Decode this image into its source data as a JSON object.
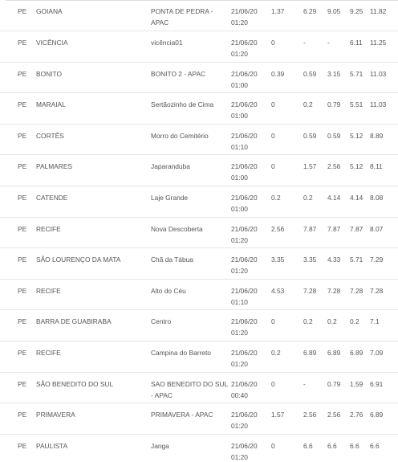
{
  "rows": [
    {
      "uf": "PE",
      "municipio": "GOIANA",
      "estacao": "PONTA DE PEDRA - APAC",
      "data": "21/06/20",
      "hora": "01:20",
      "v1": "1.37",
      "v2": "6.29",
      "v3": "9.05",
      "v4": "9.25",
      "v5": "11.82"
    },
    {
      "uf": "PE",
      "municipio": "VICÊNCIA",
      "estacao": "vicência01",
      "data": "21/06/20",
      "hora": "01:20",
      "v1": "0",
      "v2": "-",
      "v3": "-",
      "v4": "6.11",
      "v5": "11.25"
    },
    {
      "uf": "PE",
      "municipio": "BONITO",
      "estacao": "BONITO 2 - APAC",
      "data": "21/06/20",
      "hora": "01:00",
      "v1": "0.39",
      "v2": "0.59",
      "v3": "3.15",
      "v4": "5.71",
      "v5": "11.03"
    },
    {
      "uf": "PE",
      "municipio": "MARAIAL",
      "estacao": "Sertãozinho de Cima",
      "data": "21/06/20",
      "hora": "01:00",
      "v1": "0",
      "v2": "0.2",
      "v3": "0.79",
      "v4": "5.51",
      "v5": "11.03"
    },
    {
      "uf": "PE",
      "municipio": "CORTÊS",
      "estacao": "Morro do Cemitério",
      "data": "21/06/20",
      "hora": "01:10",
      "v1": "0",
      "v2": "0.59",
      "v3": "0.59",
      "v4": "5.12",
      "v5": "8.89"
    },
    {
      "uf": "PE",
      "municipio": "PALMARES",
      "estacao": "Japaranduba",
      "data": "21/06/20",
      "hora": "01:00",
      "v1": "0",
      "v2": "1.57",
      "v3": "2.56",
      "v4": "5.12",
      "v5": "8.11"
    },
    {
      "uf": "PE",
      "municipio": "CATENDE",
      "estacao": "Laje Grande",
      "data": "21/06/20",
      "hora": "01:00",
      "v1": "0.2",
      "v2": "0.2",
      "v3": "4.14",
      "v4": "4.14",
      "v5": "8.08"
    },
    {
      "uf": "PE",
      "municipio": "RECIFE",
      "estacao": "Nova Descoberta",
      "data": "21/06/20",
      "hora": "01:20",
      "v1": "2.56",
      "v2": "7.87",
      "v3": "7.87",
      "v4": "7.87",
      "v5": "8.07"
    },
    {
      "uf": "PE",
      "municipio": "SÃO LOURENÇO DA MATA",
      "estacao": "Chã da Tábua",
      "data": "21/06/20",
      "hora": "01:20",
      "v1": "3.35",
      "v2": "3.35",
      "v3": "4.33",
      "v4": "5.71",
      "v5": "7.29"
    },
    {
      "uf": "PE",
      "municipio": "RECIFE",
      "estacao": "Alto do Céu",
      "data": "21/06/20",
      "hora": "01:10",
      "v1": "4.53",
      "v2": "7.28",
      "v3": "7.28",
      "v4": "7.28",
      "v5": "7.28"
    },
    {
      "uf": "PE",
      "municipio": "BARRA DE GUABIRABA",
      "estacao": "Centro",
      "data": "21/06/20",
      "hora": "01:20",
      "v1": "0",
      "v2": "0.2",
      "v3": "0.2",
      "v4": "0.2",
      "v5": "7.1"
    },
    {
      "uf": "PE",
      "municipio": "RECIFE",
      "estacao": "Campina do Barreto",
      "data": "21/06/20",
      "hora": "01:20",
      "v1": "0.2",
      "v2": "6.89",
      "v3": "6.89",
      "v4": "6.89",
      "v5": "7.09"
    },
    {
      "uf": "PE",
      "municipio": "SÃO BENEDITO DO SUL",
      "estacao": "SAO BENEDITO DO SUL - APAC",
      "data": "21/06/20",
      "hora": "00:40",
      "v1": "0",
      "v2": "-",
      "v3": "0.79",
      "v4": "1.59",
      "v5": "6.91"
    },
    {
      "uf": "PE",
      "municipio": "PRIMAVERA",
      "estacao": "PRIMAVERA - APAC",
      "data": "21/06/20",
      "hora": "01:20",
      "v1": "1.57",
      "v2": "2.56",
      "v3": "2.56",
      "v4": "2.76",
      "v5": "6.89"
    },
    {
      "uf": "PE",
      "municipio": "PAULISTA",
      "estacao": "Janga",
      "data": "21/06/20",
      "hora": "01:20",
      "v1": "0",
      "v2": "6.6",
      "v3": "6.6",
      "v4": "6.6",
      "v5": "6.6"
    }
  ]
}
